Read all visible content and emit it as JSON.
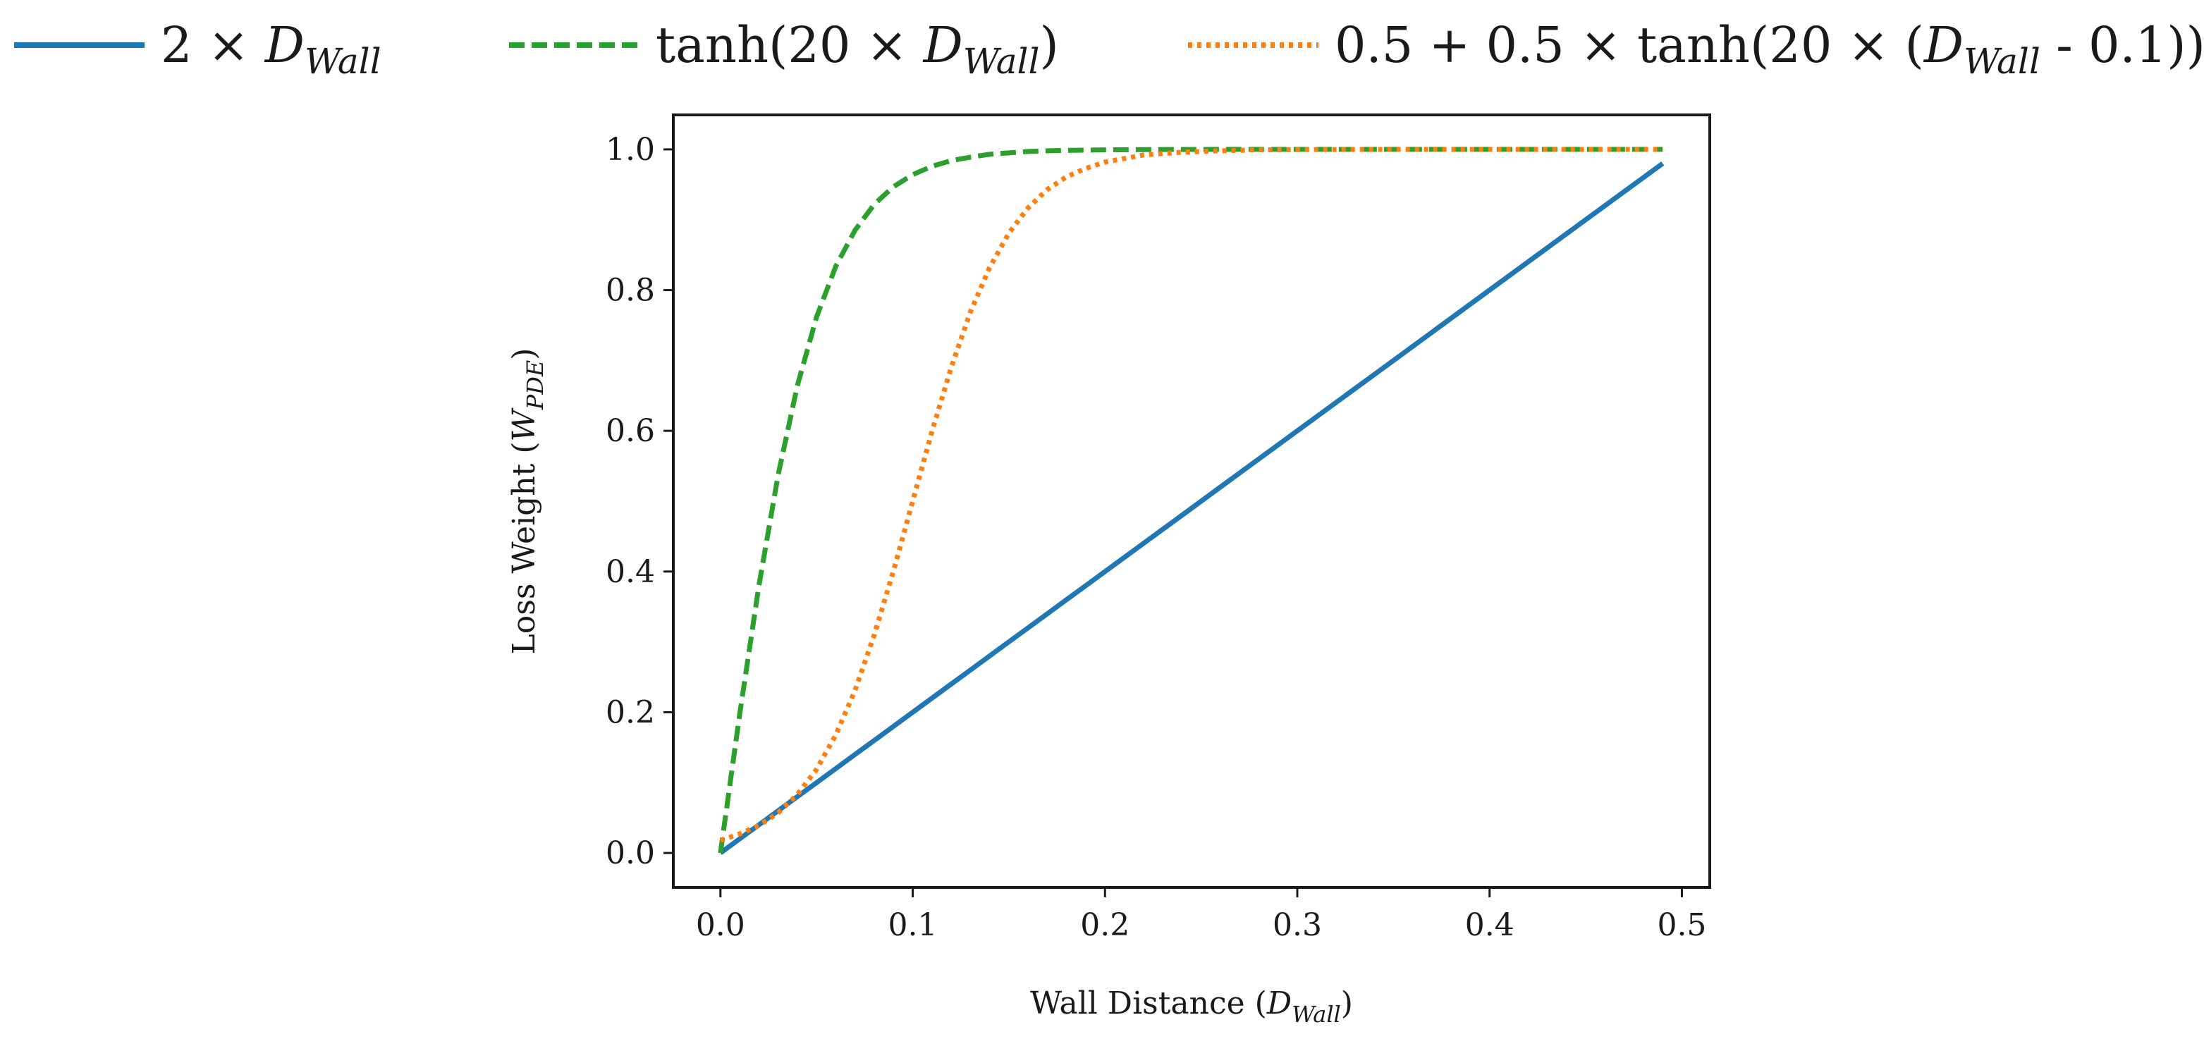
{
  "chart_data": {
    "type": "line",
    "xlabel": "Wall Distance",
    "xlabel_var": "D",
    "xlabel_sub": "Wall",
    "ylabel": "Loss Weight",
    "ylabel_var": "W",
    "ylabel_sub": "PDE",
    "xlim": [
      -0.0245,
      0.5145
    ],
    "ylim": [
      -0.049,
      1.049
    ],
    "xticks": [
      "0.0",
      "0.1",
      "0.2",
      "0.3",
      "0.4",
      "0.5"
    ],
    "yticks": [
      "0.0",
      "0.2",
      "0.4",
      "0.6",
      "0.8",
      "1.0"
    ],
    "legend_position": "top",
    "x": [
      0.0,
      0.01,
      0.02,
      0.03,
      0.04,
      0.05,
      0.06,
      0.07,
      0.08,
      0.09,
      0.1,
      0.11,
      0.12,
      0.13,
      0.14,
      0.15,
      0.16,
      0.17,
      0.18,
      0.19,
      0.2,
      0.22,
      0.24,
      0.26,
      0.28,
      0.3,
      0.35,
      0.4,
      0.45,
      0.49
    ],
    "series": [
      {
        "name": "2 × D_Wall",
        "legend_pre": "2 × ",
        "legend_var": "D",
        "legend_sub": "Wall",
        "legend_post": "",
        "color": "#1f77b4",
        "style": "solid",
        "values": [
          0.0,
          0.02,
          0.04,
          0.06,
          0.08,
          0.1,
          0.12,
          0.14,
          0.16,
          0.18,
          0.2,
          0.22,
          0.24,
          0.26,
          0.28,
          0.3,
          0.32,
          0.34,
          0.36,
          0.38,
          0.4,
          0.44,
          0.48,
          0.52,
          0.56,
          0.6,
          0.7,
          0.8,
          0.9,
          0.98
        ]
      },
      {
        "name": "tanh(20 × D_Wall)",
        "legend_pre": "tanh(20 × ",
        "legend_var": "D",
        "legend_sub": "Wall",
        "legend_post": ")",
        "color": "#2ca02c",
        "style": "dashed",
        "values": [
          0.0,
          0.197,
          0.38,
          0.537,
          0.664,
          0.762,
          0.834,
          0.885,
          0.922,
          0.947,
          0.964,
          0.976,
          0.984,
          0.989,
          0.993,
          0.995,
          0.997,
          0.998,
          0.9985,
          0.999,
          0.9993,
          0.9997,
          0.9999,
          1.0,
          1.0,
          1.0,
          1.0,
          1.0,
          1.0,
          1.0
        ]
      },
      {
        "name": "0.5 + 0.5 × tanh(20 × (D_Wall - 0.1))",
        "legend_pre": "0.5 + 0.5 × tanh(20 × (",
        "legend_var": "D",
        "legend_sub": "Wall",
        "legend_post": " - 0.1))",
        "color": "#ff7f0e",
        "style": "dotted",
        "values": [
          0.018,
          0.027,
          0.039,
          0.057,
          0.083,
          0.119,
          0.168,
          0.231,
          0.31,
          0.401,
          0.5,
          0.599,
          0.69,
          0.769,
          0.832,
          0.881,
          0.917,
          0.943,
          0.961,
          0.973,
          0.982,
          0.992,
          0.996,
          0.998,
          0.9993,
          0.9997,
          1.0,
          1.0,
          1.0,
          1.0
        ]
      }
    ]
  }
}
